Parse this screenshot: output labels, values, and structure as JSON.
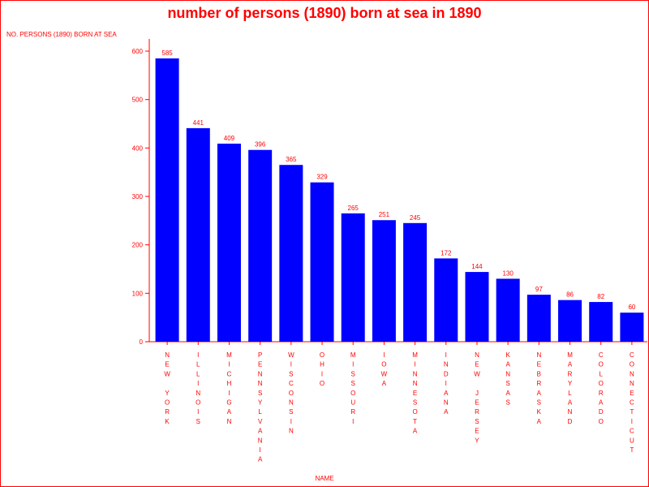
{
  "colors": {
    "accent": "#ff0000",
    "bar": "#0000ff",
    "background": "#ffffff"
  },
  "chart_data": {
    "type": "bar",
    "title": "number of persons (1890) born at sea in 1890",
    "ylabel": "NO. PERSONS (1890) BORN AT SEA",
    "xlabel": "NAME",
    "ylim": [
      0,
      600
    ],
    "yticks": [
      0,
      100,
      200,
      300,
      400,
      500,
      600
    ],
    "grid": false,
    "categories": [
      "NEW YORK",
      "ILLINOIS",
      "MICHIGAN",
      "PENNSYLVANIA",
      "WISCONSIN",
      "OHIO",
      "MISSOURI",
      "IOWA",
      "MINNESOTA",
      "INDIANA",
      "NEW JERSEY",
      "KANSAS",
      "NEBRASKA",
      "MARYLAND",
      "COLORADO",
      "CONNECTICUT"
    ],
    "values": [
      585,
      441,
      409,
      396,
      365,
      329,
      265,
      251,
      245,
      172,
      144,
      130,
      97,
      86,
      82,
      60
    ]
  }
}
